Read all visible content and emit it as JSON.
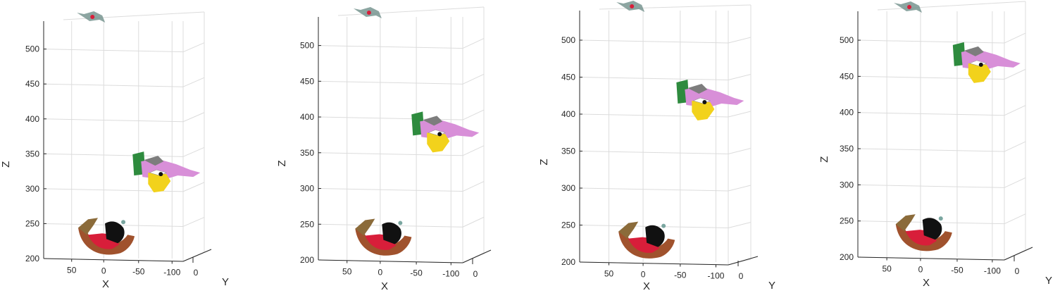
{
  "chart_data": [
    {
      "type": "scatter3d",
      "xlabel": "X",
      "ylabel": "Y",
      "zlabel": "Z",
      "x_ticks": [
        "50",
        "0",
        "-50",
        "-100"
      ],
      "y_ticks": [
        "0"
      ],
      "z_ticks": [
        "500",
        "450",
        "400",
        "350",
        "300",
        "250",
        "200"
      ],
      "zlim": [
        200,
        540
      ],
      "grid": true,
      "clusters": [
        {
          "name": "top",
          "z": 540
        },
        {
          "name": "upper",
          "z": 325
        },
        {
          "name": "lower",
          "z": 230
        }
      ]
    },
    {
      "type": "scatter3d",
      "xlabel": "X",
      "ylabel": "",
      "zlabel": "Z",
      "x_ticks": [
        "50",
        "0",
        "-50",
        "-100"
      ],
      "y_ticks": [
        "0"
      ],
      "z_ticks": [
        "500",
        "450",
        "400",
        "350",
        "300",
        "250",
        "200"
      ],
      "zlim": [
        200,
        540
      ],
      "grid": true,
      "clusters": [
        {
          "name": "top",
          "z": 540
        },
        {
          "name": "upper",
          "z": 380
        },
        {
          "name": "lower",
          "z": 230
        }
      ]
    },
    {
      "type": "scatter3d",
      "xlabel": "X",
      "ylabel": "Y",
      "zlabel": "Z",
      "x_ticks": [
        "50",
        "0",
        "-50",
        "-100"
      ],
      "y_ticks": [
        "0"
      ],
      "z_ticks": [
        "500",
        "450",
        "400",
        "350",
        "300",
        "250",
        "200"
      ],
      "zlim": [
        200,
        540
      ],
      "grid": true,
      "clusters": [
        {
          "name": "top",
          "z": 540
        },
        {
          "name": "upper",
          "z": 420
        },
        {
          "name": "lower",
          "z": 228
        }
      ]
    },
    {
      "type": "scatter3d",
      "xlabel": "X",
      "ylabel": "Y",
      "zlabel": "Z",
      "x_ticks": [
        "50",
        "0",
        "-50",
        "-100"
      ],
      "y_ticks": [
        "0"
      ],
      "z_ticks": [
        "500",
        "450",
        "400",
        "350",
        "300",
        "250",
        "200"
      ],
      "zlim": [
        200,
        540
      ],
      "grid": true,
      "clusters": [
        {
          "name": "top",
          "z": 540
        },
        {
          "name": "upper",
          "z": 470
        },
        {
          "name": "lower",
          "z": 232
        }
      ]
    }
  ],
  "colors": {
    "grid": "#dcdcdc",
    "axis": "#262626",
    "green": "#2e8b3e",
    "pink": "#d88fd8",
    "yellow": "#f2d21c",
    "red": "#d81e3a",
    "brown": "#a0522d",
    "black": "#111111"
  }
}
